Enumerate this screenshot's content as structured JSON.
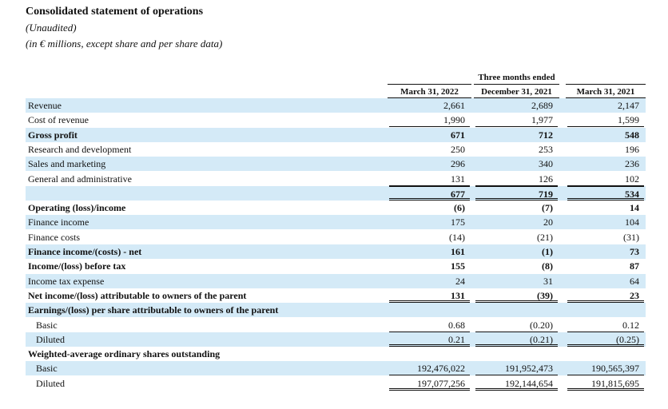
{
  "header": {
    "title": "Consolidated statement of operations",
    "subtitle": "(Unaudited)",
    "note": "(in € millions, except share and per share data)"
  },
  "table": {
    "group_header": "Three months ended",
    "columns": [
      "March 31, 2022",
      "December 31, 2021",
      "March 31, 2021"
    ],
    "rows": [
      {
        "label": "Revenue",
        "values": [
          "2,661",
          "2,689",
          "2,147"
        ]
      },
      {
        "label": "Cost of revenue",
        "values": [
          "1,990",
          "1,977",
          "1,599"
        ]
      },
      {
        "label": "Gross profit",
        "values": [
          "671",
          "712",
          "548"
        ]
      },
      {
        "label": "Research and development",
        "values": [
          "250",
          "253",
          "196"
        ]
      },
      {
        "label": "Sales and marketing",
        "values": [
          "296",
          "340",
          "236"
        ]
      },
      {
        "label": "General and administrative",
        "values": [
          "131",
          "126",
          "102"
        ]
      },
      {
        "values": [
          "677",
          "719",
          "534"
        ]
      },
      {
        "label": "Operating (loss)/income",
        "values": [
          "(6)",
          "(7)",
          "14"
        ]
      },
      {
        "label": "Finance income",
        "values": [
          "175",
          "20",
          "104"
        ]
      },
      {
        "label": "Finance costs",
        "values": [
          "(14)",
          "(21)",
          "(31)"
        ]
      },
      {
        "label": "Finance income/(costs) - net",
        "values": [
          "161",
          "(1)",
          "73"
        ]
      },
      {
        "label": "Income/(loss) before tax",
        "values": [
          "155",
          "(8)",
          "87"
        ]
      },
      {
        "label": "Income tax expense",
        "values": [
          "24",
          "31",
          "64"
        ]
      },
      {
        "label": "Net income/(loss) attributable to owners of the parent",
        "values": [
          "131",
          "(39)",
          "23"
        ]
      },
      {
        "label": "Earnings/(loss) per share attributable to owners of the parent"
      },
      {
        "label": "Basic",
        "values": [
          "0.68",
          "(0.20)",
          "0.12"
        ]
      },
      {
        "label": "Diluted",
        "values": [
          "0.21",
          "(0.21)",
          "(0.25)"
        ]
      },
      {
        "label": "Weighted-average ordinary shares outstanding"
      },
      {
        "label": "Basic",
        "values": [
          "192,476,022",
          "191,952,473",
          "190,565,397"
        ]
      },
      {
        "label": "Diluted",
        "values": [
          "197,077,256",
          "192,144,654",
          "191,815,695"
        ]
      }
    ]
  }
}
